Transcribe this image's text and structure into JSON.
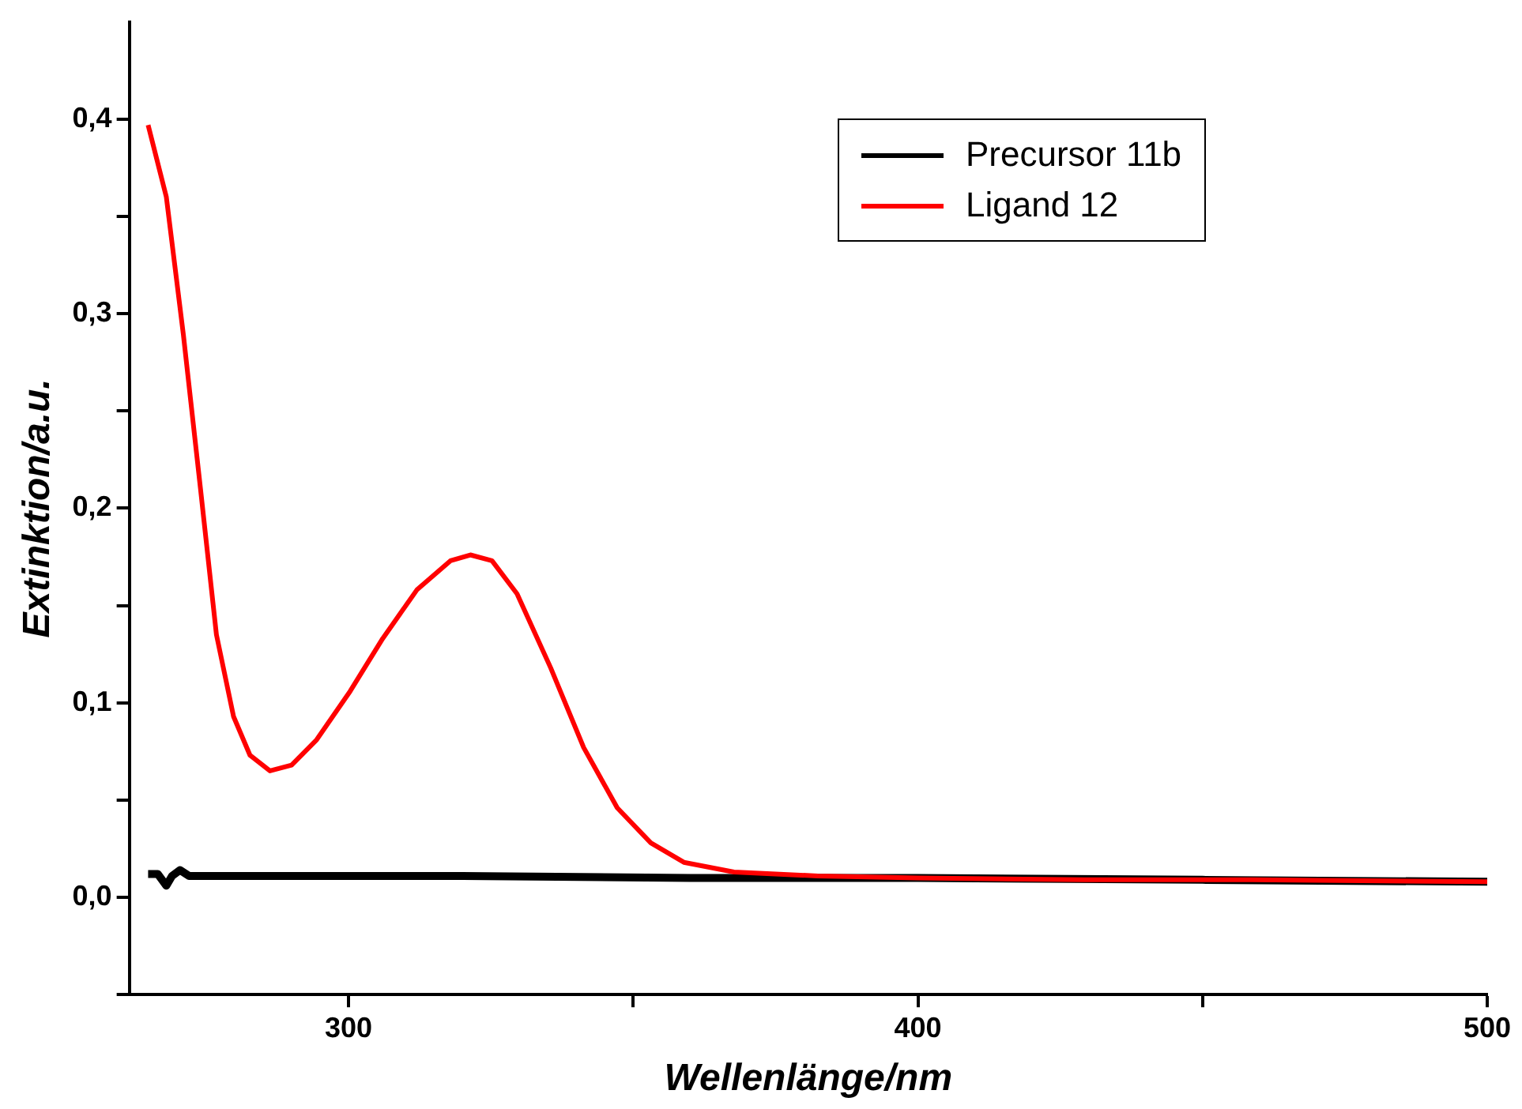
{
  "chart_data": {
    "type": "line",
    "xlabel": "Wellenlänge/nm",
    "ylabel": "Extinktion/a.u.",
    "xlim": [
      261.5,
      500
    ],
    "ylim": [
      -0.05,
      0.45
    ],
    "xticks": [
      300,
      {
        "value": 350,
        "label": null
      },
      400,
      {
        "value": 450,
        "label": null
      },
      500
    ],
    "yticks": [
      {
        "value": -0.05,
        "label": null
      },
      {
        "value": 0,
        "label": "0,0"
      },
      {
        "value": 0.05,
        "label": null
      },
      {
        "value": 0.1,
        "label": "0,1"
      },
      {
        "value": 0.15,
        "label": null
      },
      {
        "value": 0.2,
        "label": "0,2"
      },
      {
        "value": 0.25,
        "label": null
      },
      {
        "value": 0.3,
        "label": "0,3"
      },
      {
        "value": 0.35,
        "label": null
      },
      {
        "value": 0.4,
        "label": "0,4"
      }
    ],
    "grid": false,
    "legend": "top right",
    "marker": "none",
    "line_style": "solid",
    "series": [
      {
        "name": "Precursor 11b",
        "color": "#000000",
        "x": [
          264.8,
          266.5,
          268,
          269,
          270.4,
          272,
          290,
          320,
          360,
          400,
          450,
          500
        ],
        "values": [
          0.012,
          0.012,
          0.006,
          0.011,
          0.014,
          0.011,
          0.011,
          0.011,
          0.01,
          0.01,
          0.009,
          0.008
        ]
      },
      {
        "name": "Ligand 12",
        "color": "#ff0000",
        "x": [
          264.8,
          268,
          271,
          274,
          276.8,
          279.8,
          282.7,
          286.2,
          290,
          294.4,
          300.3,
          306,
          312,
          317.9,
          321.4,
          325.2,
          329.6,
          335.5,
          341.3,
          347.2,
          353.1,
          358.9,
          367.7,
          382.4,
          400,
          429.3,
          458.7,
          500
        ],
        "values": [
          0.397,
          0.36,
          0.289,
          0.21,
          0.135,
          0.093,
          0.073,
          0.065,
          0.068,
          0.081,
          0.106,
          0.133,
          0.158,
          0.173,
          0.176,
          0.173,
          0.156,
          0.118,
          0.077,
          0.046,
          0.028,
          0.018,
          0.013,
          0.011,
          0.01,
          0.009,
          0.009,
          0.008
        ]
      }
    ]
  }
}
